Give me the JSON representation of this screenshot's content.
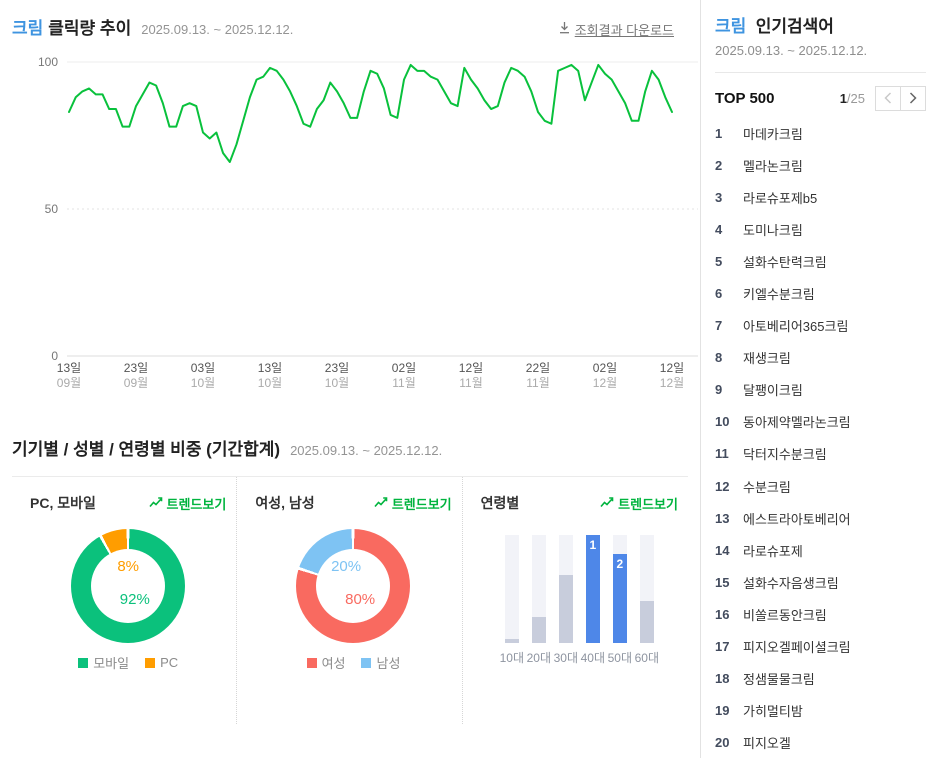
{
  "trend_section": {
    "keyword": "크림",
    "title": "클릭량 추이",
    "date_range": "2025.09.13. ~ 2025.12.12.",
    "download_label": "조회결과 다운로드"
  },
  "demo_section": {
    "title": "기기별 / 성별 / 연령별 비중 (기간합계)",
    "date_range": "2025.09.13. ~ 2025.12.12.",
    "trend_link_label": "트렌드보기",
    "columns": [
      {
        "label": "PC, 모바일"
      },
      {
        "label": "여성, 남성"
      },
      {
        "label": "연령별"
      }
    ]
  },
  "sidebar": {
    "keyword": "크림",
    "title": "인기검색어",
    "date_range": "2025.09.13. ~ 2025.12.12.",
    "top_label": "TOP 500",
    "page_current": "1",
    "page_total": "/25",
    "prev_icon": "chevron-left",
    "next_icon": "chevron-right",
    "items": [
      {
        "rank": "1",
        "keyword": "마데카크림"
      },
      {
        "rank": "2",
        "keyword": "멜라논크림"
      },
      {
        "rank": "3",
        "keyword": "라로슈포제b5"
      },
      {
        "rank": "4",
        "keyword": "도미나크림"
      },
      {
        "rank": "5",
        "keyword": "설화수탄력크림"
      },
      {
        "rank": "6",
        "keyword": "키엘수분크림"
      },
      {
        "rank": "7",
        "keyword": "아토베리어365크림"
      },
      {
        "rank": "8",
        "keyword": "재생크림"
      },
      {
        "rank": "9",
        "keyword": "달팽이크림"
      },
      {
        "rank": "10",
        "keyword": "동아제약멜라논크림"
      },
      {
        "rank": "11",
        "keyword": "닥터지수분크림"
      },
      {
        "rank": "12",
        "keyword": "수분크림"
      },
      {
        "rank": "13",
        "keyword": "에스트라아토베리어"
      },
      {
        "rank": "14",
        "keyword": "라로슈포제"
      },
      {
        "rank": "15",
        "keyword": "설화수자음생크림"
      },
      {
        "rank": "16",
        "keyword": "비쏠르동안크림"
      },
      {
        "rank": "17",
        "keyword": "피지오겔페이셜크림"
      },
      {
        "rank": "18",
        "keyword": "정샘물물크림"
      },
      {
        "rank": "19",
        "keyword": "가히멀티밤"
      },
      {
        "rank": "20",
        "keyword": "피지오겔"
      }
    ]
  },
  "chart_data": [
    {
      "type": "line",
      "title": "크림 클릭량 추이",
      "date_range": "2025.09.13. ~ 2025.12.12.",
      "ylim": [
        0,
        100
      ],
      "yticks": [
        0,
        50,
        100
      ],
      "grid": "horizontal",
      "color": "#09c13c",
      "tick_indices": [
        0,
        10,
        20,
        30,
        40,
        50,
        60,
        70,
        80,
        90
      ],
      "tick_labels": [
        {
          "day": "13일",
          "month": "09월"
        },
        {
          "day": "23일",
          "month": "09월"
        },
        {
          "day": "03일",
          "month": "10월"
        },
        {
          "day": "13일",
          "month": "10월"
        },
        {
          "day": "23일",
          "month": "10월"
        },
        {
          "day": "02일",
          "month": "11월"
        },
        {
          "day": "12일",
          "month": "11월"
        },
        {
          "day": "22일",
          "month": "11월"
        },
        {
          "day": "02일",
          "month": "12월"
        },
        {
          "day": "12일",
          "month": "12월"
        }
      ],
      "values": [
        83,
        88,
        90,
        91,
        89,
        89,
        84,
        84,
        78,
        78,
        85,
        89,
        93,
        92,
        86,
        78,
        78,
        85,
        86,
        85,
        76,
        74,
        76,
        69,
        66,
        72,
        80,
        88,
        94,
        95,
        98,
        97,
        94,
        90,
        85,
        79,
        78,
        84,
        87,
        93,
        90,
        86,
        81,
        81,
        90,
        97,
        96,
        91,
        82,
        81,
        94,
        99,
        97,
        97,
        95,
        94,
        90,
        86,
        85,
        98,
        94,
        91,
        87,
        84,
        85,
        93,
        98,
        97,
        95,
        90,
        83,
        80,
        79,
        97,
        98,
        99,
        97,
        87,
        93,
        99,
        96,
        94,
        90,
        86,
        80,
        80,
        90,
        97,
        94,
        88,
        83
      ]
    },
    {
      "type": "pie",
      "donut": true,
      "title": "PC, 모바일",
      "categories": [
        "모바일",
        "PC"
      ],
      "values": [
        92,
        8
      ],
      "colors": [
        "#0bc17c",
        "#ff9d00"
      ],
      "center_labels": [
        "92%",
        "8%"
      ]
    },
    {
      "type": "pie",
      "donut": true,
      "title": "여성, 남성",
      "categories": [
        "여성",
        "남성"
      ],
      "values": [
        80,
        20
      ],
      "colors": [
        "#f96a60",
        "#7ec3f3"
      ],
      "center_labels": [
        "80%",
        "20%"
      ]
    },
    {
      "type": "bar",
      "title": "연령별",
      "categories": [
        "10대",
        "20대",
        "30대",
        "40대",
        "50대",
        "60대"
      ],
      "values": [
        4,
        24,
        63,
        100,
        82,
        39
      ],
      "unit": "relative-percent-of-max",
      "bar_color": "#c8cddc",
      "highlight_color": "#4e87e8",
      "track_color": "#f2f3f8",
      "rank_labels": [
        "",
        "",
        "",
        "1",
        "2",
        ""
      ]
    }
  ]
}
